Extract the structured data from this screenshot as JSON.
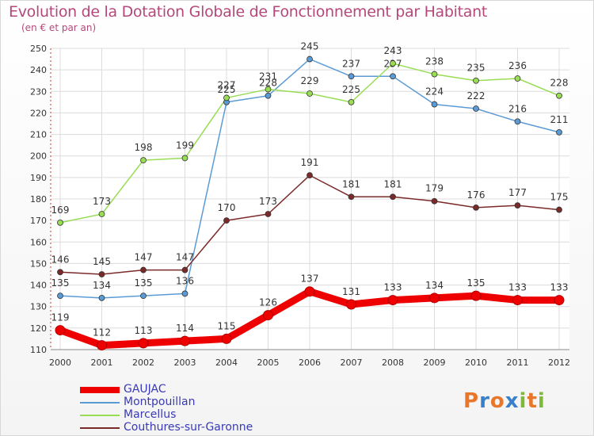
{
  "header": {
    "title": "Evolution de la Dotation Globale de Fonctionnement par Habitant",
    "subtitle": "(en € et par an)"
  },
  "logo": {
    "letters": [
      "P",
      "r",
      "o",
      "x",
      "i",
      "t",
      "i"
    ],
    "colors": [
      "#e8762b",
      "#3a7fc9",
      "#e8762b",
      "#3a7fc9",
      "#7fb83a",
      "#e8762b",
      "#7fb83a"
    ]
  },
  "chart_data": {
    "type": "line",
    "title": "Evolution de la Dotation Globale de Fonctionnement par Habitant",
    "ylabel": "(en € et par an)",
    "x": [
      "2000",
      "2001",
      "2002",
      "2003",
      "2004",
      "2005",
      "2006",
      "2007",
      "2008",
      "2009",
      "2010",
      "2011",
      "2012"
    ],
    "ylim": [
      110,
      250
    ],
    "yticks": [
      110,
      120,
      130,
      140,
      150,
      160,
      170,
      180,
      190,
      200,
      210,
      220,
      230,
      240,
      250
    ],
    "grid": true,
    "legend_position": "bottom-left",
    "series": [
      {
        "name": "GAUJAC",
        "color": "#ee0000",
        "bold": true,
        "values": [
          119,
          112,
          113,
          114,
          115,
          126,
          137,
          131,
          133,
          134,
          135,
          133,
          133
        ]
      },
      {
        "name": "Montpouillan",
        "color": "#5b9bd5",
        "values": [
          135,
          134,
          135,
          136,
          225,
          228,
          245,
          237,
          237,
          224,
          222,
          216,
          211
        ]
      },
      {
        "name": "Marcellus",
        "color": "#99dd55",
        "values": [
          169,
          173,
          198,
          199,
          227,
          231,
          229,
          225,
          243,
          238,
          235,
          236,
          228
        ]
      },
      {
        "name": "Couthures-sur-Garonne",
        "color": "#7b2a2a",
        "values": [
          146,
          145,
          147,
          147,
          170,
          173,
          191,
          181,
          181,
          179,
          176,
          177,
          175
        ]
      }
    ]
  }
}
